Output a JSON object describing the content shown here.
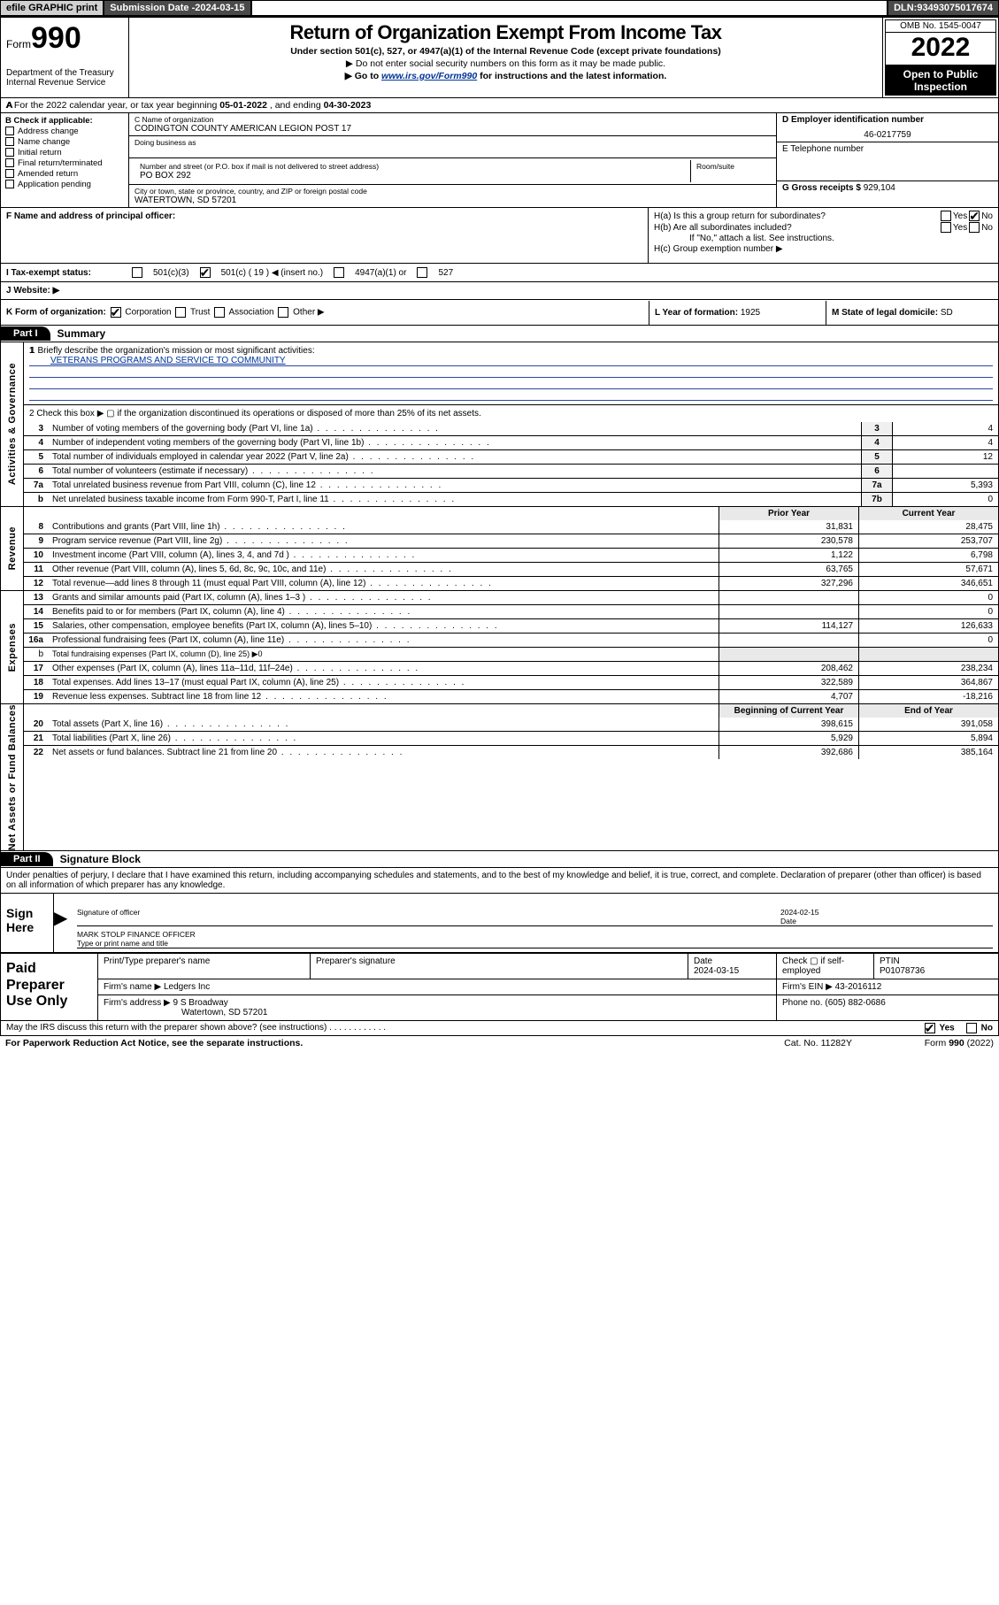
{
  "topbar": {
    "efile": "efile GRAPHIC print",
    "subdate_label": "Submission Date - ",
    "subdate": "2024-03-15",
    "dln_label": "DLN: ",
    "dln": "93493075017674"
  },
  "header": {
    "form_label": "Form",
    "form_num": "990",
    "dept": "Department of the Treasury",
    "irs": "Internal Revenue Service",
    "title": "Return of Organization Exempt From Income Tax",
    "subtitle": "Under section 501(c), 527, or 4947(a)(1) of the Internal Revenue Code (except private foundations)",
    "note1": "▶ Do not enter social security numbers on this form as it may be made public.",
    "note2_pre": "▶ Go to ",
    "note2_link": "www.irs.gov/Form990",
    "note2_post": " for instructions and the latest information.",
    "omb": "OMB No. 1545-0047",
    "year": "2022",
    "oti1": "Open to Public",
    "oti2": "Inspection"
  },
  "period": {
    "prefix": "A For the 2022 calendar year, or tax year beginning ",
    "begin": "05-01-2022",
    "mid": " , and ending ",
    "end": "04-30-2023"
  },
  "B": {
    "title": "B Check if applicable:",
    "items": [
      "Address change",
      "Name change",
      "Initial return",
      "Final return/terminated",
      "Amended return",
      "Application pending"
    ]
  },
  "C": {
    "name_label": "C Name of organization",
    "name": "CODINGTON COUNTY AMERICAN LEGION POST 17",
    "dba_label": "Doing business as",
    "street_label": "Number and street (or P.O. box if mail is not delivered to street address)",
    "street": "PO BOX 292",
    "room_label": "Room/suite",
    "city_label": "City or town, state or province, country, and ZIP or foreign postal code",
    "city": "WATERTOWN, SD  57201"
  },
  "D": {
    "label": "D Employer identification number",
    "value": "46-0217759"
  },
  "E": {
    "label": "E Telephone number",
    "value": ""
  },
  "G": {
    "label": "G Gross receipts $",
    "value": "929,104"
  },
  "F": {
    "label": "F  Name and address of principal officer:"
  },
  "H": {
    "a": "H(a)  Is this a group return for subordinates?",
    "b": "H(b)  Are all subordinates included?",
    "b_note": "If \"No,\" attach a list. See instructions.",
    "c": "H(c)  Group exemption number ▶",
    "yes": "Yes",
    "no": "No"
  },
  "I": {
    "label": "I  Tax-exempt status:",
    "opts": [
      "501(c)(3)",
      "501(c) ( 19 ) ◀ (insert no.)",
      "4947(a)(1) or",
      "527"
    ]
  },
  "J": {
    "label": "J  Website: ▶"
  },
  "K": {
    "label": "K Form of organization:",
    "opts": [
      "Corporation",
      "Trust",
      "Association",
      "Other ▶"
    ]
  },
  "L": {
    "label": "L Year of formation: ",
    "value": "1925"
  },
  "M": {
    "label": "M State of legal domicile: ",
    "value": "SD"
  },
  "partI": {
    "tag": "Part I",
    "title": "Summary"
  },
  "gov": {
    "label": "Activities & Governance",
    "l1": "1   Briefly describe the organization's mission or most significant activities:",
    "mission": "VETERANS PROGRAMS AND SERVICE TO COMMUNITY",
    "l2": "2   Check this box ▶ ▢  if the organization discontinued its operations or disposed of more than 25% of its net assets.",
    "rows": [
      {
        "n": "3",
        "d": "Number of voting members of the governing body (Part VI, line 1a)",
        "box": "3",
        "v": "4"
      },
      {
        "n": "4",
        "d": "Number of independent voting members of the governing body (Part VI, line 1b)",
        "box": "4",
        "v": "4"
      },
      {
        "n": "5",
        "d": "Total number of individuals employed in calendar year 2022 (Part V, line 2a)",
        "box": "5",
        "v": "12"
      },
      {
        "n": "6",
        "d": "Total number of volunteers (estimate if necessary)",
        "box": "6",
        "v": ""
      },
      {
        "n": "7a",
        "d": "Total unrelated business revenue from Part VIII, column (C), line 12",
        "box": "7a",
        "v": "5,393"
      },
      {
        "n": "b",
        "d": "Net unrelated business taxable income from Form 990-T, Part I, line 11",
        "box": "7b",
        "v": "0"
      }
    ]
  },
  "rev": {
    "label": "Revenue",
    "hdr": {
      "prior": "Prior Year",
      "curr": "Current Year"
    },
    "rows": [
      {
        "n": "8",
        "d": "Contributions and grants (Part VIII, line 1h)",
        "p": "31,831",
        "c": "28,475"
      },
      {
        "n": "9",
        "d": "Program service revenue (Part VIII, line 2g)",
        "p": "230,578",
        "c": "253,707"
      },
      {
        "n": "10",
        "d": "Investment income (Part VIII, column (A), lines 3, 4, and 7d )",
        "p": "1,122",
        "c": "6,798"
      },
      {
        "n": "11",
        "d": "Other revenue (Part VIII, column (A), lines 5, 6d, 8c, 9c, 10c, and 11e)",
        "p": "63,765",
        "c": "57,671"
      },
      {
        "n": "12",
        "d": "Total revenue—add lines 8 through 11 (must equal Part VIII, column (A), line 12)",
        "p": "327,296",
        "c": "346,651"
      }
    ]
  },
  "exp": {
    "label": "Expenses",
    "rows": [
      {
        "n": "13",
        "d": "Grants and similar amounts paid (Part IX, column (A), lines 1–3 )",
        "p": "",
        "c": "0"
      },
      {
        "n": "14",
        "d": "Benefits paid to or for members (Part IX, column (A), line 4)",
        "p": "",
        "c": "0"
      },
      {
        "n": "15",
        "d": "Salaries, other compensation, employee benefits (Part IX, column (A), lines 5–10)",
        "p": "114,127",
        "c": "126,633"
      },
      {
        "n": "16a",
        "d": "Professional fundraising fees (Part IX, column (A), line 11e)",
        "p": "",
        "c": "0"
      },
      {
        "n": "b",
        "d": "Total fundraising expenses (Part IX, column (D), line 25) ▶0",
        "p": null,
        "c": null
      },
      {
        "n": "17",
        "d": "Other expenses (Part IX, column (A), lines 11a–11d, 11f–24e)",
        "p": "208,462",
        "c": "238,234"
      },
      {
        "n": "18",
        "d": "Total expenses. Add lines 13–17 (must equal Part IX, column (A), line 25)",
        "p": "322,589",
        "c": "364,867"
      },
      {
        "n": "19",
        "d": "Revenue less expenses. Subtract line 18 from line 12",
        "p": "4,707",
        "c": "-18,216"
      }
    ]
  },
  "nab": {
    "label": "Net Assets or Fund Balances",
    "hdr": {
      "b": "Beginning of Current Year",
      "e": "End of Year"
    },
    "rows": [
      {
        "n": "20",
        "d": "Total assets (Part X, line 16)",
        "p": "398,615",
        "c": "391,058"
      },
      {
        "n": "21",
        "d": "Total liabilities (Part X, line 26)",
        "p": "5,929",
        "c": "5,894"
      },
      {
        "n": "22",
        "d": "Net assets or fund balances. Subtract line 21 from line 20",
        "p": "392,686",
        "c": "385,164"
      }
    ]
  },
  "partII": {
    "tag": "Part II",
    "title": "Signature Block"
  },
  "sig": {
    "intro": "Under penalties of perjury, I declare that I have examined this return, including accompanying schedules and statements, and to the best of my knowledge and belief, it is true, correct, and complete. Declaration of preparer (other than officer) is based on all information of which preparer has any knowledge.",
    "sign_here": "Sign Here",
    "sig_officer": "Signature of officer",
    "date": "Date",
    "sig_date": "2024-02-15",
    "mark": "MARK STOLP FINANCE OFFICER",
    "type_name": "Type or print name and title",
    "paid": "Paid Preparer Use Only",
    "pp_name": "Print/Type preparer's name",
    "pp_sig": "Preparer's signature",
    "pp_date_label": "Date",
    "pp_date": "2024-03-15",
    "pp_check": "Check ▢ if self-employed",
    "ptin_label": "PTIN",
    "ptin": "P01078736",
    "firm_name_label": "Firm's name    ▶",
    "firm_name": "Ledgers Inc",
    "firm_ein_label": "Firm's EIN ▶",
    "firm_ein": "43-2016112",
    "firm_addr_label": "Firm's address ▶",
    "firm_addr1": "9 S Broadway",
    "firm_addr2": "Watertown, SD  57201",
    "phone_label": "Phone no.",
    "phone": "(605) 882-0686",
    "may": "May the IRS discuss this return with the preparer shown above? (see instructions)",
    "yes": "Yes",
    "no": "No"
  },
  "foot": {
    "pra": "For Paperwork Reduction Act Notice, see the separate instructions.",
    "cat": "Cat. No. 11282Y",
    "form": "Form 990 (2022)"
  }
}
